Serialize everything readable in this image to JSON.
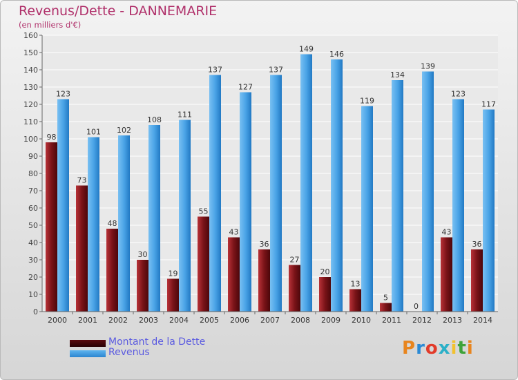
{
  "header": {
    "title": "Revenus/Dette - DANNEMARIE",
    "subtitle": "(en milliers d'€)"
  },
  "legend": {
    "items": [
      {
        "label": "Montant de la Dette",
        "color": "#7a1015"
      },
      {
        "label": "Revenus",
        "color": "#4aa3e6"
      }
    ]
  },
  "logo": {
    "text": "Proxiti"
  },
  "chart_data": {
    "type": "bar",
    "title": "Revenus/Dette - DANNEMARIE",
    "subtitle": "(en milliers d'€)",
    "categories": [
      "2000",
      "2001",
      "2002",
      "2003",
      "2004",
      "2005",
      "2006",
      "2007",
      "2008",
      "2009",
      "2010",
      "2011",
      "2012",
      "2013",
      "2014"
    ],
    "series": [
      {
        "name": "Montant de la Dette",
        "color": "#7a1015",
        "values": [
          98,
          73,
          48,
          30,
          19,
          55,
          43,
          36,
          27,
          20,
          13,
          5,
          0,
          43,
          36
        ]
      },
      {
        "name": "Revenus",
        "color": "#4aa3e6",
        "values": [
          123,
          101,
          102,
          108,
          111,
          137,
          127,
          137,
          149,
          146,
          119,
          134,
          139,
          123,
          117
        ]
      }
    ],
    "ylim": [
      0,
      160
    ],
    "yticks": [
      0,
      10,
      20,
      30,
      40,
      50,
      60,
      70,
      80,
      90,
      100,
      110,
      120,
      130,
      140,
      150,
      160
    ],
    "grid": true,
    "legend_position": "bottom-left"
  }
}
